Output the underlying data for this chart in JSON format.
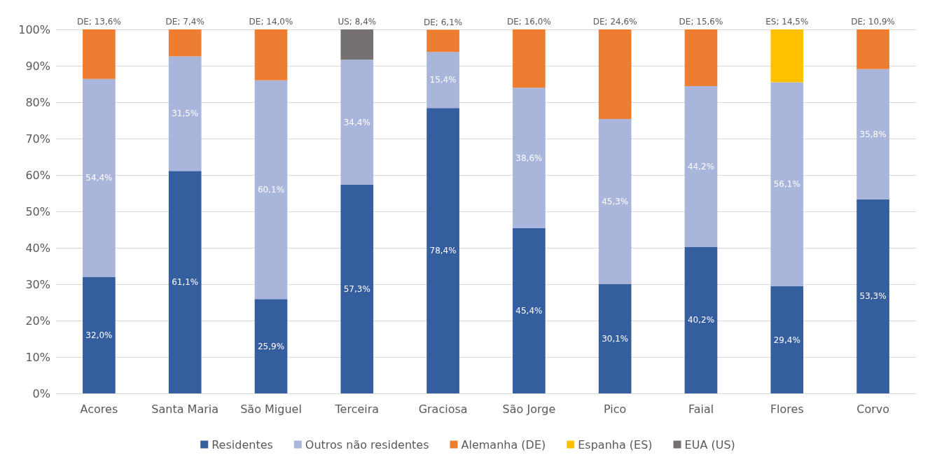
{
  "chart_data": {
    "type": "bar",
    "stacked": true,
    "grid": "y",
    "legend": "bottom",
    "categories": [
      "Acores",
      "Santa Maria",
      "São Miguel",
      "Terceira",
      "Graciosa",
      "São Jorge",
      "Pico",
      "Faial",
      "Flores",
      "Corvo"
    ],
    "ylim": [
      0,
      100
    ],
    "yticks": [
      {
        "value": 0,
        "label": "0%"
      },
      {
        "value": 10,
        "label": "10%"
      },
      {
        "value": 20,
        "label": "20%"
      },
      {
        "value": 30,
        "label": "30%"
      },
      {
        "value": 40,
        "label": "40%"
      },
      {
        "value": 50,
        "label": "50%"
      },
      {
        "value": 60,
        "label": "60%"
      },
      {
        "value": 70,
        "label": "70%"
      },
      {
        "value": 80,
        "label": "80%"
      },
      {
        "value": 90,
        "label": "90%"
      },
      {
        "value": 100,
        "label": "100%"
      }
    ],
    "series": [
      {
        "name": "Residentes",
        "color": "#355e9f",
        "values": [
          32.0,
          61.1,
          25.9,
          57.3,
          78.4,
          45.4,
          30.1,
          40.2,
          29.4,
          53.3
        ],
        "value_labels": [
          "32,0%",
          "61,1%",
          "25,9%",
          "57,3%",
          "78,4%",
          "45,4%",
          "30,1%",
          "40,2%",
          "29,4%",
          "53,3%"
        ]
      },
      {
        "name": "Outros não residentes",
        "color": "#a9b5db",
        "values": [
          54.4,
          31.5,
          60.1,
          34.4,
          15.4,
          38.6,
          45.3,
          44.2,
          56.1,
          35.8
        ],
        "value_labels": [
          "54,4%",
          "31,5%",
          "60,1%",
          "34,4%",
          "15,4%",
          "38,6%",
          "45,3%",
          "44,2%",
          "56,1%",
          "35,8%"
        ]
      },
      {
        "name": "Alemanha (DE)",
        "color": "#ed7d31",
        "values": [
          13.6,
          7.4,
          14.0,
          null,
          6.1,
          16.0,
          24.6,
          15.6,
          null,
          10.9
        ],
        "value_labels": [
          "DE; 13,6%",
          "DE; 7,4%",
          "DE; 14,0%",
          null,
          "DE; 6,1%",
          "DE; 16,0%",
          "DE; 24,6%",
          "DE; 15,6%",
          null,
          "DE; 10,9%"
        ]
      },
      {
        "name": "Espanha (ES)",
        "color": "#ffc000",
        "values": [
          null,
          null,
          null,
          null,
          null,
          null,
          null,
          null,
          14.5,
          null
        ],
        "value_labels": [
          null,
          null,
          null,
          null,
          null,
          null,
          null,
          null,
          "ES; 14,5%",
          null
        ]
      },
      {
        "name": "EUA (US)",
        "color": "#767171",
        "values": [
          null,
          null,
          null,
          8.4,
          null,
          null,
          null,
          null,
          null,
          null
        ],
        "value_labels": [
          null,
          null,
          null,
          "US; 8,4%",
          null,
          null,
          null,
          null,
          null,
          null
        ]
      }
    ]
  }
}
